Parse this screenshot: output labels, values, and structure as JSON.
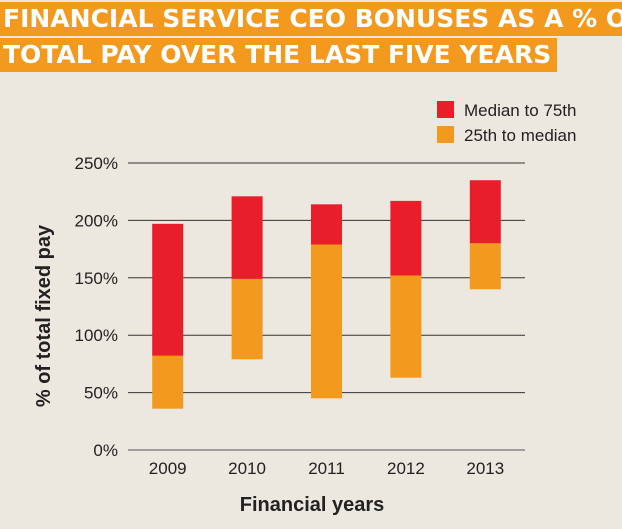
{
  "chart_data": {
    "type": "bar",
    "stacked": "floating",
    "title_lines": [
      "FINANCIAL SERVICE CEO BONUSES AS A % OF",
      "TOTAL PAY OVER THE LAST FIVE YEARS"
    ],
    "categories": [
      "2009",
      "2010",
      "2011",
      "2012",
      "2013"
    ],
    "series": [
      {
        "name": "Median to 75th",
        "color": "#e81f2a",
        "low": [
          82,
          149,
          179,
          152,
          180
        ],
        "high": [
          197,
          221,
          214,
          217,
          235
        ]
      },
      {
        "name": "25th to median",
        "color": "#f39a1e",
        "low": [
          36,
          79,
          45,
          63,
          140
        ],
        "high": [
          82,
          149,
          179,
          152,
          180
        ]
      }
    ],
    "xlabel": "Financial years",
    "ylabel": "% of total fixed pay",
    "ylim": [
      0,
      250
    ],
    "yticks": [
      "0%",
      "50%",
      "100%",
      "150%",
      "200%",
      "250%"
    ],
    "grid": true,
    "legend_position": "top-right"
  }
}
